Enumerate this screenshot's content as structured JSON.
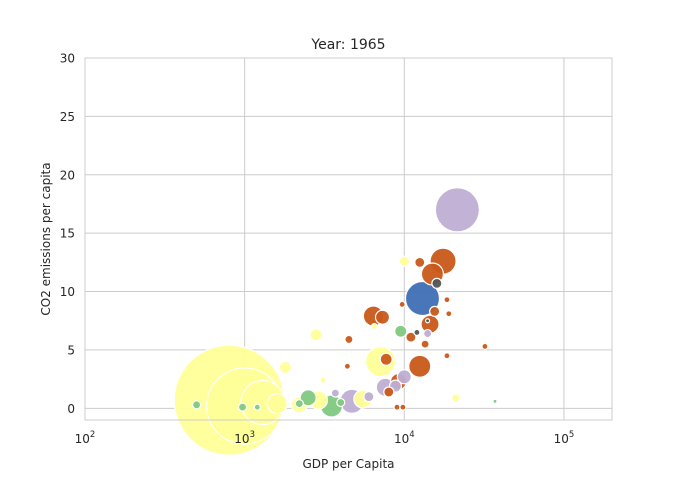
{
  "chart_data": {
    "type": "scatter",
    "title": "Year: 1965",
    "xlabel": "GDP per Capita",
    "ylabel": "CO2 emissions per capita",
    "x_scale": "log",
    "xlim": [
      100,
      200000
    ],
    "ylim": [
      -1,
      30
    ],
    "x_ticks": [
      {
        "value": 100,
        "base": "10",
        "exp": "2"
      },
      {
        "value": 1000,
        "base": "10",
        "exp": "3"
      },
      {
        "value": 10000,
        "base": "10",
        "exp": "4"
      },
      {
        "value": 100000,
        "base": "10",
        "exp": "5"
      }
    ],
    "y_ticks": [
      0,
      5,
      10,
      15,
      20,
      25,
      30
    ],
    "grid": true,
    "legend": "none",
    "colors": {
      "yellow": "#ffff99",
      "green": "#7fc97f",
      "purple": "#beaed4",
      "orange": "#c9591a",
      "blue": "#3f6fb5",
      "dark": "#555555"
    },
    "points": [
      {
        "x": 800,
        "y": 0.7,
        "size": 55,
        "color": "yellow"
      },
      {
        "x": 1000,
        "y": 0.2,
        "size": 38,
        "color": "yellow"
      },
      {
        "x": 1300,
        "y": 0.5,
        "size": 22,
        "color": "yellow"
      },
      {
        "x": 1600,
        "y": 0.4,
        "size": 10,
        "color": "yellow"
      },
      {
        "x": 2200,
        "y": 0.3,
        "size": 8,
        "color": "yellow"
      },
      {
        "x": 2900,
        "y": 0.7,
        "size": 9,
        "color": "yellow"
      },
      {
        "x": 2800,
        "y": 6.3,
        "size": 6,
        "color": "yellow"
      },
      {
        "x": 1800,
        "y": 3.5,
        "size": 6,
        "color": "yellow"
      },
      {
        "x": 3100,
        "y": 2.4,
        "size": 3,
        "color": "yellow"
      },
      {
        "x": 5500,
        "y": 0.8,
        "size": 9,
        "color": "yellow"
      },
      {
        "x": 7100,
        "y": 4.0,
        "size": 15,
        "color": "yellow"
      },
      {
        "x": 10000,
        "y": 12.6,
        "size": 5,
        "color": "yellow"
      },
      {
        "x": 21000,
        "y": 0.9,
        "size": 4,
        "color": "yellow"
      },
      {
        "x": 6500,
        "y": 7.0,
        "size": 3,
        "color": "yellow"
      },
      {
        "x": 500,
        "y": 0.3,
        "size": 4,
        "color": "green"
      },
      {
        "x": 970,
        "y": 0.1,
        "size": 4,
        "color": "green"
      },
      {
        "x": 2200,
        "y": 0.4,
        "size": 4,
        "color": "green"
      },
      {
        "x": 2500,
        "y": 0.9,
        "size": 8,
        "color": "green"
      },
      {
        "x": 3500,
        "y": 0.2,
        "size": 11,
        "color": "green"
      },
      {
        "x": 4000,
        "y": 0.5,
        "size": 4,
        "color": "green"
      },
      {
        "x": 9500,
        "y": 6.6,
        "size": 6,
        "color": "green"
      },
      {
        "x": 37000,
        "y": 0.6,
        "size": 2,
        "color": "green"
      },
      {
        "x": 1200,
        "y": 0.1,
        "size": 3,
        "color": "green"
      },
      {
        "x": 4700,
        "y": 0.6,
        "size": 12,
        "color": "purple"
      },
      {
        "x": 6000,
        "y": 1.0,
        "size": 5,
        "color": "purple"
      },
      {
        "x": 7600,
        "y": 1.8,
        "size": 9,
        "color": "purple"
      },
      {
        "x": 8800,
        "y": 1.9,
        "size": 6,
        "color": "purple"
      },
      {
        "x": 10000,
        "y": 2.7,
        "size": 7,
        "color": "purple"
      },
      {
        "x": 14000,
        "y": 6.4,
        "size": 4,
        "color": "purple"
      },
      {
        "x": 21500,
        "y": 17.0,
        "size": 22,
        "color": "purple"
      },
      {
        "x": 3700,
        "y": 1.3,
        "size": 4,
        "color": "purple"
      },
      {
        "x": 4400,
        "y": 3.6,
        "size": 3,
        "color": "orange"
      },
      {
        "x": 4500,
        "y": 5.9,
        "size": 4,
        "color": "orange"
      },
      {
        "x": 6400,
        "y": 7.9,
        "size": 10,
        "color": "orange"
      },
      {
        "x": 7300,
        "y": 7.8,
        "size": 7,
        "color": "orange"
      },
      {
        "x": 7700,
        "y": 4.2,
        "size": 6,
        "color": "orange"
      },
      {
        "x": 8000,
        "y": 1.4,
        "size": 5,
        "color": "orange"
      },
      {
        "x": 9200,
        "y": 2.3,
        "size": 8,
        "color": "orange"
      },
      {
        "x": 9000,
        "y": 0.1,
        "size": 3,
        "color": "orange"
      },
      {
        "x": 9800,
        "y": 0.1,
        "size": 3,
        "color": "orange"
      },
      {
        "x": 9700,
        "y": 8.9,
        "size": 3,
        "color": "orange"
      },
      {
        "x": 11000,
        "y": 6.1,
        "size": 5,
        "color": "orange"
      },
      {
        "x": 12500,
        "y": 3.6,
        "size": 11,
        "color": "orange"
      },
      {
        "x": 12500,
        "y": 12.5,
        "size": 5,
        "color": "orange"
      },
      {
        "x": 13500,
        "y": 5.5,
        "size": 4,
        "color": "orange"
      },
      {
        "x": 14500,
        "y": 7.2,
        "size": 9,
        "color": "orange"
      },
      {
        "x": 15000,
        "y": 11.5,
        "size": 11,
        "color": "orange"
      },
      {
        "x": 15500,
        "y": 8.3,
        "size": 5,
        "color": "orange"
      },
      {
        "x": 17500,
        "y": 12.6,
        "size": 13,
        "color": "orange"
      },
      {
        "x": 18500,
        "y": 9.3,
        "size": 3,
        "color": "orange"
      },
      {
        "x": 19000,
        "y": 8.1,
        "size": 3,
        "color": "orange"
      },
      {
        "x": 18500,
        "y": 4.5,
        "size": 3,
        "color": "orange"
      },
      {
        "x": 32000,
        "y": 5.3,
        "size": 3,
        "color": "orange"
      },
      {
        "x": 13000,
        "y": 9.4,
        "size": 17,
        "color": "blue"
      },
      {
        "x": 16000,
        "y": 10.7,
        "size": 5,
        "color": "dark"
      },
      {
        "x": 12000,
        "y": 6.5,
        "size": 3,
        "color": "dark"
      },
      {
        "x": 14000,
        "y": 7.5,
        "size": 2,
        "color": "dark"
      }
    ]
  }
}
